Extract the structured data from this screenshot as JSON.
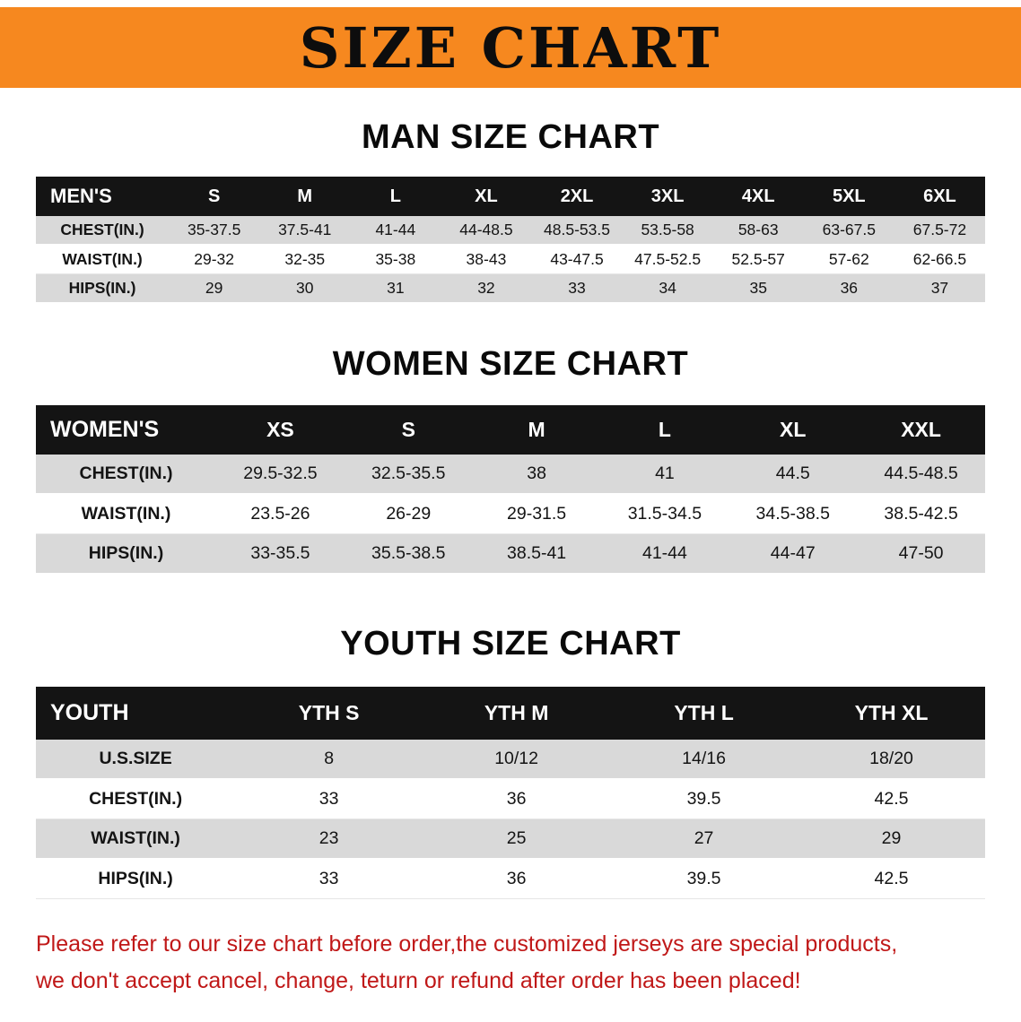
{
  "banner": {
    "title": "SIZE CHART",
    "bg_color": "#f6881f",
    "text_color": "#0d0d0d"
  },
  "sections": {
    "men": {
      "heading": "MAN SIZE CHART",
      "table": {
        "header": [
          "MEN'S",
          "S",
          "M",
          "L",
          "XL",
          "2XL",
          "3XL",
          "4XL",
          "5XL",
          "6XL"
        ],
        "rows": [
          [
            "CHEST(IN.)",
            "35-37.5",
            "37.5-41",
            "41-44",
            "44-48.5",
            "48.5-53.5",
            "53.5-58",
            "58-63",
            "63-67.5",
            "67.5-72"
          ],
          [
            "WAIST(IN.)",
            "29-32",
            "32-35",
            "35-38",
            "38-43",
            "43-47.5",
            "47.5-52.5",
            "52.5-57",
            "57-62",
            "62-66.5"
          ],
          [
            "HIPS(IN.)",
            "29",
            "30",
            "31",
            "32",
            "33",
            "34",
            "35",
            "36",
            "37"
          ]
        ]
      }
    },
    "women": {
      "heading": "WOMEN SIZE CHART",
      "table": {
        "header": [
          "WOMEN'S",
          "XS",
          "S",
          "M",
          "L",
          "XL",
          "XXL"
        ],
        "rows": [
          [
            "CHEST(IN.)",
            "29.5-32.5",
            "32.5-35.5",
            "38",
            "41",
            "44.5",
            "44.5-48.5"
          ],
          [
            "WAIST(IN.)",
            "23.5-26",
            "26-29",
            "29-31.5",
            "31.5-34.5",
            "34.5-38.5",
            "38.5-42.5"
          ],
          [
            "HIPS(IN.)",
            "33-35.5",
            "35.5-38.5",
            "38.5-41",
            "41-44",
            "44-47",
            "47-50"
          ]
        ]
      }
    },
    "youth": {
      "heading": "YOUTH SIZE CHART",
      "table": {
        "header": [
          "YOUTH",
          "YTH S",
          "YTH M",
          "YTH L",
          "YTH XL"
        ],
        "rows": [
          [
            "U.S.SIZE",
            "8",
            "10/12",
            "14/16",
            "18/20"
          ],
          [
            "CHEST(IN.)",
            "33",
            "36",
            "39.5",
            "42.5"
          ],
          [
            "WAIST(IN.)",
            "23",
            "25",
            "27",
            "29"
          ],
          [
            "HIPS(IN.)",
            "33",
            "36",
            "39.5",
            "42.5"
          ]
        ]
      }
    }
  },
  "disclaimer": {
    "lines": [
      "Please refer to our size chart before order,the customized jerseys are special products,",
      "we don't accept cancel, change, teturn or refund after order has been placed!"
    ],
    "color": "#c01818"
  },
  "colors": {
    "table_header_bg": "#141414",
    "alt_row_bg": "#d9d9d9"
  }
}
